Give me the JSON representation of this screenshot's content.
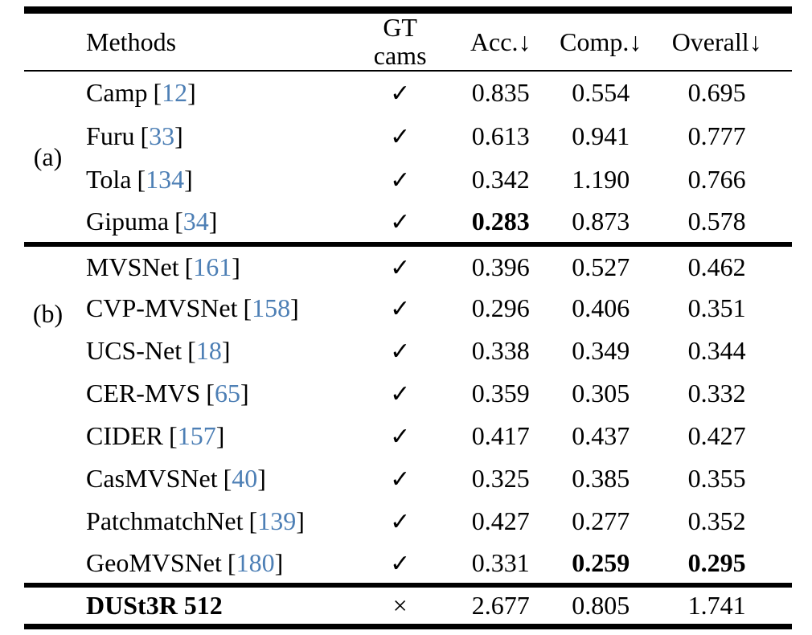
{
  "header": {
    "methods": "Methods",
    "gt_cams": "GT cams",
    "acc": "Acc.↓",
    "comp": "Comp.↓",
    "overall": "Overall↓"
  },
  "sections": {
    "a": {
      "label": "(a)"
    },
    "b": {
      "label": "(b)"
    }
  },
  "rows": {
    "a0": {
      "method": "Camp",
      "cite": "12",
      "gt": "✓",
      "acc": "0.835",
      "comp": "0.554",
      "overall": "0.695"
    },
    "a1": {
      "method": "Furu",
      "cite": "33",
      "gt": "✓",
      "acc": "0.613",
      "comp": "0.941",
      "overall": "0.777"
    },
    "a2": {
      "method": "Tola",
      "cite": "134",
      "gt": "✓",
      "acc": "0.342",
      "comp": "1.190",
      "overall": "0.766"
    },
    "a3": {
      "method": "Gipuma",
      "cite": "34",
      "gt": "✓",
      "acc": "0.283",
      "comp": "0.873",
      "overall": "0.578"
    },
    "b0": {
      "method": "MVSNet",
      "cite": "161",
      "gt": "✓",
      "acc": "0.396",
      "comp": "0.527",
      "overall": "0.462"
    },
    "b1": {
      "method": "CVP-MVSNet",
      "cite": "158",
      "gt": "✓",
      "acc": "0.296",
      "comp": "0.406",
      "overall": "0.351"
    },
    "b2": {
      "method": "UCS-Net",
      "cite": "18",
      "gt": "✓",
      "acc": "0.338",
      "comp": "0.349",
      "overall": "0.344"
    },
    "b3": {
      "method": "CER-MVS",
      "cite": "65",
      "gt": "✓",
      "acc": "0.359",
      "comp": "0.305",
      "overall": "0.332"
    },
    "b4": {
      "method": "CIDER",
      "cite": "157",
      "gt": "✓",
      "acc": "0.417",
      "comp": "0.437",
      "overall": "0.427"
    },
    "b5": {
      "method": "CasMVSNet",
      "cite": "40",
      "gt": "✓",
      "acc": "0.325",
      "comp": "0.385",
      "overall": "0.355"
    },
    "b6": {
      "method": "PatchmatchNet",
      "cite": "139",
      "gt": "✓",
      "acc": "0.427",
      "comp": "0.277",
      "overall": "0.352"
    },
    "b7": {
      "method": "GeoMVSNet",
      "cite": "180",
      "gt": "✓",
      "acc": "0.331",
      "comp": "0.259",
      "overall": "0.295"
    },
    "footer": {
      "method": "DUSt3R 512",
      "gt": "×",
      "acc": "2.677",
      "comp": "0.805",
      "overall": "1.741"
    }
  },
  "colors": {
    "citation_blue": "#4d7fb5",
    "rule_black": "#000000",
    "background": "#ffffff"
  }
}
